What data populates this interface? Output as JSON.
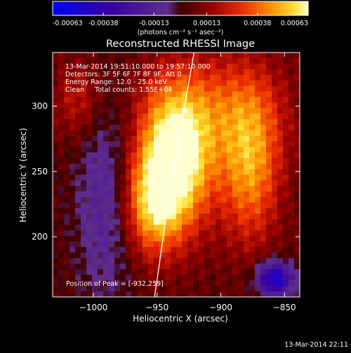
{
  "colorbar": {
    "tick_labels": [
      "-0.00063",
      "-0.00038",
      "-0.00013",
      "0.00013",
      "0.00038",
      "0.00063"
    ],
    "tick_values": [
      -0.00063,
      -0.00038,
      -0.00013,
      0.00013,
      0.00038,
      0.00063
    ],
    "range": [
      -0.00063,
      0.00063
    ],
    "units_label": "(photons cm⁻² s⁻¹ asec⁻²)"
  },
  "chart_data": {
    "type": "heatmap",
    "title": "Reconstructed RHESSI Image",
    "xlabel": "Heliocentric X (arcsec)",
    "ylabel": "Heliocentric Y (arcsec)",
    "xlim": [
      -1032,
      -838
    ],
    "ylim": [
      154,
      341
    ],
    "x_ticks": [
      -1000,
      -950,
      -900,
      -850
    ],
    "x_tick_labels": [
      "−1000",
      "−950",
      "−900",
      "−850"
    ],
    "y_ticks": [
      200,
      250,
      300
    ],
    "y_tick_labels": [
      "200",
      "250",
      "300"
    ],
    "peak": {
      "x": -932,
      "y": 259
    },
    "sources": [
      {
        "x": -935,
        "y": 258,
        "sx": 20,
        "sy": 38,
        "amp": 0.00063
      },
      {
        "x": -955,
        "y": 225,
        "sx": 16,
        "sy": 28,
        "amp": 0.00038
      },
      {
        "x": -877,
        "y": 255,
        "sx": 17,
        "sy": 42,
        "amp": 0.0004
      },
      {
        "x": -905,
        "y": 300,
        "sx": 40,
        "sy": 30,
        "amp": 0.00022
      },
      {
        "x": -1012,
        "y": 305,
        "sx": 14,
        "sy": 22,
        "amp": 0.00018
      }
    ],
    "negative_regions": [
      {
        "x": -990,
        "y": 230,
        "sx": 16,
        "sy": 55,
        "amp": -0.0002
      },
      {
        "x": -858,
        "y": 168,
        "sx": 10,
        "sy": 9,
        "amp": -0.00055
      }
    ],
    "limb_line": [
      [
        -952,
        154
      ],
      [
        -940,
        235
      ],
      [
        -921,
        341
      ]
    ],
    "annotations": [
      "13-Mar-2014 19:51:10.000 to 19:57:10.000",
      "Detectors: 3F 5F 6F 7F 8F 9F, Att 0",
      "Energy Range: 12.0 - 25.0 keV",
      "Clean     Total counts: 1.55E+04"
    ],
    "peak_label": "Position of Peak = [-932,259]"
  },
  "footer_timestamp": "13-Mar-2014 22:11",
  "colors": {
    "background": "#000000",
    "text": "#ffffff",
    "limb": "#ffffff"
  }
}
